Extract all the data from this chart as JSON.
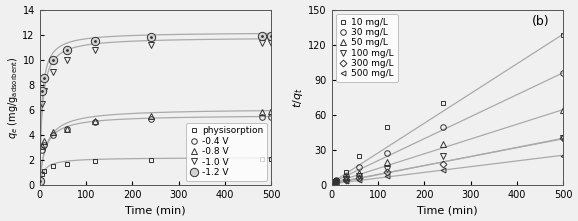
{
  "left_plot": {
    "xlabel": "Time (min)",
    "ylabel": "q_e (mg/g_adsorbent)",
    "xlim": [
      0,
      500
    ],
    "ylim": [
      0,
      14
    ],
    "yticks": [
      0,
      2,
      4,
      6,
      8,
      10,
      12,
      14
    ],
    "xticks": [
      0,
      100,
      200,
      300,
      400,
      500
    ],
    "series": [
      {
        "label": "physisorption",
        "marker": "s",
        "qe": 2.2,
        "k2": 0.05,
        "data_x": [
          1,
          5,
          10,
          30,
          60,
          120,
          240,
          480,
          500
        ],
        "data_y": [
          0.1,
          0.9,
          1.1,
          1.5,
          1.65,
          1.9,
          2.0,
          2.05,
          2.1
        ]
      },
      {
        "label": "-0.4 V",
        "marker": "o",
        "qe": 5.6,
        "k2": 0.015,
        "data_x": [
          1,
          5,
          10,
          30,
          60,
          120,
          240,
          480,
          500
        ],
        "data_y": [
          0.2,
          2.8,
          3.2,
          4.0,
          4.5,
          5.0,
          5.3,
          5.4,
          5.4
        ]
      },
      {
        "label": "-0.8 V",
        "marker": "^",
        "qe": 6.1,
        "k2": 0.012,
        "data_x": [
          1,
          5,
          10,
          30,
          60,
          120,
          240,
          480,
          500
        ],
        "data_y": [
          0.2,
          3.1,
          3.5,
          4.2,
          4.5,
          5.1,
          5.5,
          5.8,
          5.9
        ]
      },
      {
        "label": "-1.0 V",
        "marker": "v",
        "qe": 11.8,
        "k2": 0.015,
        "data_x": [
          1,
          5,
          10,
          30,
          60,
          120,
          240,
          480,
          500
        ],
        "data_y": [
          0.3,
          6.5,
          7.5,
          9.0,
          10.0,
          10.8,
          11.2,
          11.3,
          11.3
        ]
      },
      {
        "label": "-1.2 V",
        "marker": "o_dot",
        "qe": 12.2,
        "k2": 0.018,
        "data_x": [
          1,
          5,
          10,
          30,
          60,
          120,
          240,
          480,
          500
        ],
        "data_y": [
          0.3,
          7.5,
          8.5,
          10.0,
          10.8,
          11.5,
          11.8,
          11.9,
          11.9
        ]
      }
    ]
  },
  "right_plot": {
    "label": "(b)",
    "xlabel": "Time (min)",
    "ylabel": "t/q_t",
    "xlim": [
      0,
      500
    ],
    "ylim": [
      0,
      150
    ],
    "yticks": [
      0,
      30,
      60,
      90,
      120,
      150
    ],
    "xticks": [
      0,
      100,
      200,
      300,
      400,
      500
    ],
    "series": [
      {
        "label": "10 mg/L",
        "marker": "s",
        "slope": 0.254,
        "intercept": 2.0,
        "data_x": [
          5,
          10,
          30,
          60,
          120,
          240,
          500
        ],
        "data_y": [
          3.5,
          4.5,
          11.0,
          25.0,
          50.0,
          70.0,
          128.0
        ]
      },
      {
        "label": "30 mg/L",
        "marker": "o",
        "slope": 0.188,
        "intercept": 2.0,
        "data_x": [
          5,
          10,
          30,
          60,
          120,
          240,
          500
        ],
        "data_y": [
          3.0,
          4.0,
          8.0,
          15.0,
          27.0,
          50.0,
          96.0
        ]
      },
      {
        "label": "50 mg/L",
        "marker": "^",
        "slope": 0.126,
        "intercept": 1.5,
        "data_x": [
          5,
          10,
          30,
          60,
          120,
          240,
          500
        ],
        "data_y": [
          2.5,
          3.0,
          6.5,
          10.0,
          20.0,
          35.0,
          64.0
        ]
      },
      {
        "label": "100 mg/L",
        "marker": "v",
        "slope": 0.078,
        "intercept": 1.0,
        "data_x": [
          5,
          10,
          30,
          60,
          120,
          240,
          500
        ],
        "data_y": [
          2.0,
          2.5,
          5.5,
          8.0,
          14.0,
          25.0,
          40.0
        ]
      },
      {
        "label": "300 mg/L",
        "marker": "D",
        "slope": 0.076,
        "intercept": 1.5,
        "data_x": [
          5,
          10,
          30,
          60,
          120,
          240,
          500
        ],
        "data_y": [
          2.0,
          2.5,
          4.5,
          6.0,
          11.0,
          18.0,
          40.0
        ]
      },
      {
        "label": "500 mg/L",
        "marker": "<",
        "slope": 0.049,
        "intercept": 1.0,
        "data_x": [
          5,
          10,
          30,
          60,
          120,
          240,
          500
        ],
        "data_y": [
          1.5,
          2.0,
          3.5,
          4.5,
          8.0,
          13.0,
          25.0
        ]
      }
    ]
  },
  "background_color": "#f0f0f0",
  "line_color": "#aaaaaa",
  "marker_color": "#333333",
  "font_size": 7
}
